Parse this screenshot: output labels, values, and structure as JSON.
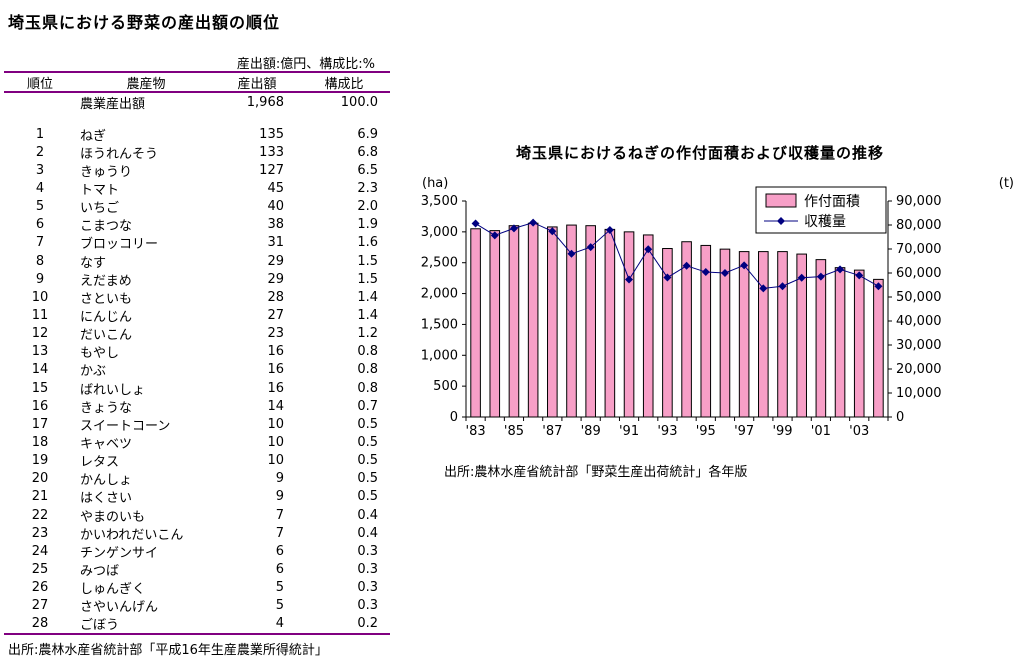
{
  "table": {
    "title": "埼玉県における野菜の産出額の順位",
    "unit_note": "産出額:億円、構成比:%",
    "columns": [
      "順位",
      "農産物",
      "産出額",
      "構成比"
    ],
    "total_row": {
      "rank": "",
      "product": "農業産出額",
      "value": "1,968",
      "share": "100.0"
    },
    "rows": [
      {
        "rank": "1",
        "product": "ねぎ",
        "value": "135",
        "share": "6.9"
      },
      {
        "rank": "2",
        "product": "ほうれんそう",
        "value": "133",
        "share": "6.8"
      },
      {
        "rank": "3",
        "product": "きゅうり",
        "value": "127",
        "share": "6.5"
      },
      {
        "rank": "4",
        "product": "トマト",
        "value": "45",
        "share": "2.3"
      },
      {
        "rank": "5",
        "product": "いちご",
        "value": "40",
        "share": "2.0"
      },
      {
        "rank": "6",
        "product": "こまつな",
        "value": "38",
        "share": "1.9"
      },
      {
        "rank": "7",
        "product": "ブロッコリー",
        "value": "31",
        "share": "1.6"
      },
      {
        "rank": "8",
        "product": "なす",
        "value": "29",
        "share": "1.5"
      },
      {
        "rank": "9",
        "product": "えだまめ",
        "value": "29",
        "share": "1.5"
      },
      {
        "rank": "10",
        "product": "さといも",
        "value": "28",
        "share": "1.4"
      },
      {
        "rank": "11",
        "product": "にんじん",
        "value": "27",
        "share": "1.4"
      },
      {
        "rank": "12",
        "product": "だいこん",
        "value": "23",
        "share": "1.2"
      },
      {
        "rank": "13",
        "product": "もやし",
        "value": "16",
        "share": "0.8"
      },
      {
        "rank": "14",
        "product": "かぶ",
        "value": "16",
        "share": "0.8"
      },
      {
        "rank": "15",
        "product": "ばれいしょ",
        "value": "16",
        "share": "0.8"
      },
      {
        "rank": "16",
        "product": "きょうな",
        "value": "14",
        "share": "0.7"
      },
      {
        "rank": "17",
        "product": "スイートコーン",
        "value": "10",
        "share": "0.5"
      },
      {
        "rank": "18",
        "product": "キャベツ",
        "value": "10",
        "share": "0.5"
      },
      {
        "rank": "19",
        "product": "レタス",
        "value": "10",
        "share": "0.5"
      },
      {
        "rank": "20",
        "product": "かんしょ",
        "value": "9",
        "share": "0.5"
      },
      {
        "rank": "21",
        "product": "はくさい",
        "value": "9",
        "share": "0.5"
      },
      {
        "rank": "22",
        "product": "やまのいも",
        "value": "7",
        "share": "0.4"
      },
      {
        "rank": "23",
        "product": "かいわれだいこん",
        "value": "7",
        "share": "0.4"
      },
      {
        "rank": "24",
        "product": "チンゲンサイ",
        "value": "6",
        "share": "0.3"
      },
      {
        "rank": "25",
        "product": "みつば",
        "value": "6",
        "share": "0.3"
      },
      {
        "rank": "26",
        "product": "しゅんぎく",
        "value": "5",
        "share": "0.3"
      },
      {
        "rank": "27",
        "product": "さやいんげん",
        "value": "5",
        "share": "0.3"
      },
      {
        "rank": "28",
        "product": "ごぼう",
        "value": "4",
        "share": "0.2"
      }
    ],
    "source": "出所:農林水産省統計部「平成16年生産農業所得統計」",
    "rule_color": "#800080"
  },
  "chart": {
    "title": "埼玉県におけるねぎの作付面積および収穫量の推移",
    "source": "出所:農林水産省統計部「野菜生産出荷統計」各年版"
  },
  "chart_data": [
    {
      "type": "table",
      "title": "埼玉県における野菜の産出額の順位",
      "unit_note": "産出額:億円、構成比:%",
      "columns": [
        "順位",
        "農産物",
        "産出額",
        "構成比"
      ],
      "rows": [
        [
          "",
          "農業産出額",
          1968,
          100.0
        ],
        [
          1,
          "ねぎ",
          135,
          6.9
        ],
        [
          2,
          "ほうれんそう",
          133,
          6.8
        ],
        [
          3,
          "きゅうり",
          127,
          6.5
        ],
        [
          4,
          "トマト",
          45,
          2.3
        ],
        [
          5,
          "いちご",
          40,
          2.0
        ],
        [
          6,
          "こまつな",
          38,
          1.9
        ],
        [
          7,
          "ブロッコリー",
          31,
          1.6
        ],
        [
          8,
          "なす",
          29,
          1.5
        ],
        [
          9,
          "えだまめ",
          29,
          1.5
        ],
        [
          10,
          "さといも",
          28,
          1.4
        ],
        [
          11,
          "にんじん",
          27,
          1.4
        ],
        [
          12,
          "だいこん",
          23,
          1.2
        ],
        [
          13,
          "もやし",
          16,
          0.8
        ],
        [
          14,
          "かぶ",
          16,
          0.8
        ],
        [
          15,
          "ばれいしょ",
          16,
          0.8
        ],
        [
          16,
          "きょうな",
          14,
          0.7
        ],
        [
          17,
          "スイートコーン",
          10,
          0.5
        ],
        [
          18,
          "キャベツ",
          10,
          0.5
        ],
        [
          19,
          "レタス",
          10,
          0.5
        ],
        [
          20,
          "かんしょ",
          9,
          0.5
        ],
        [
          21,
          "はくさい",
          9,
          0.5
        ],
        [
          22,
          "やまのいも",
          7,
          0.4
        ],
        [
          23,
          "かいわれだいこん",
          7,
          0.4
        ],
        [
          24,
          "チンゲンサイ",
          6,
          0.3
        ],
        [
          25,
          "みつば",
          6,
          0.3
        ],
        [
          26,
          "しゅんぎく",
          5,
          0.3
        ],
        [
          27,
          "さやいんげん",
          5,
          0.3
        ],
        [
          28,
          "ごぼう",
          4,
          0.2
        ]
      ]
    },
    {
      "type": "bar",
      "title": "埼玉県におけるねぎの作付面積および収穫量の推移",
      "years": [
        1983,
        1984,
        1985,
        1986,
        1987,
        1988,
        1989,
        1990,
        1991,
        1992,
        1993,
        1994,
        1995,
        1996,
        1997,
        1998,
        1999,
        2000,
        2001,
        2002,
        2003,
        2004
      ],
      "x_tick_labels": [
        "'83",
        "'85",
        "'87",
        "'89",
        "'91",
        "'93",
        "'95",
        "'97",
        "'99",
        "'01",
        "'03"
      ],
      "x_tick_indices": [
        0,
        2,
        4,
        6,
        8,
        10,
        12,
        14,
        16,
        18,
        20
      ],
      "series": [
        {
          "name": "作付面積",
          "type": "bar",
          "axis": "left",
          "unit": "ha",
          "values": [
            3050,
            3020,
            3100,
            3140,
            3080,
            3110,
            3100,
            3040,
            3000,
            2950,
            2730,
            2840,
            2780,
            2720,
            2680,
            2680,
            2680,
            2640,
            2550,
            2420,
            2380,
            2230
          ]
        },
        {
          "name": "収穫量",
          "type": "line",
          "axis": "right",
          "unit": "t",
          "values": [
            80600,
            75700,
            78600,
            81000,
            77400,
            68000,
            70800,
            77900,
            57300,
            69900,
            58100,
            63000,
            60400,
            60000,
            63200,
            53600,
            54500,
            58000,
            58500,
            61500,
            59000,
            54500
          ]
        }
      ],
      "left_axis": {
        "label": "(ha)",
        "min": 0,
        "max": 3500,
        "step": 500
      },
      "right_axis": {
        "label": "(t)",
        "min": 0,
        "max": 90000,
        "step": 10000
      },
      "grid": false,
      "legend_position": "top-right",
      "colors": {
        "bar_fill": "#F79FC7",
        "bar_border": "#000000",
        "line": "#000080",
        "axis": "#000000"
      }
    }
  ]
}
